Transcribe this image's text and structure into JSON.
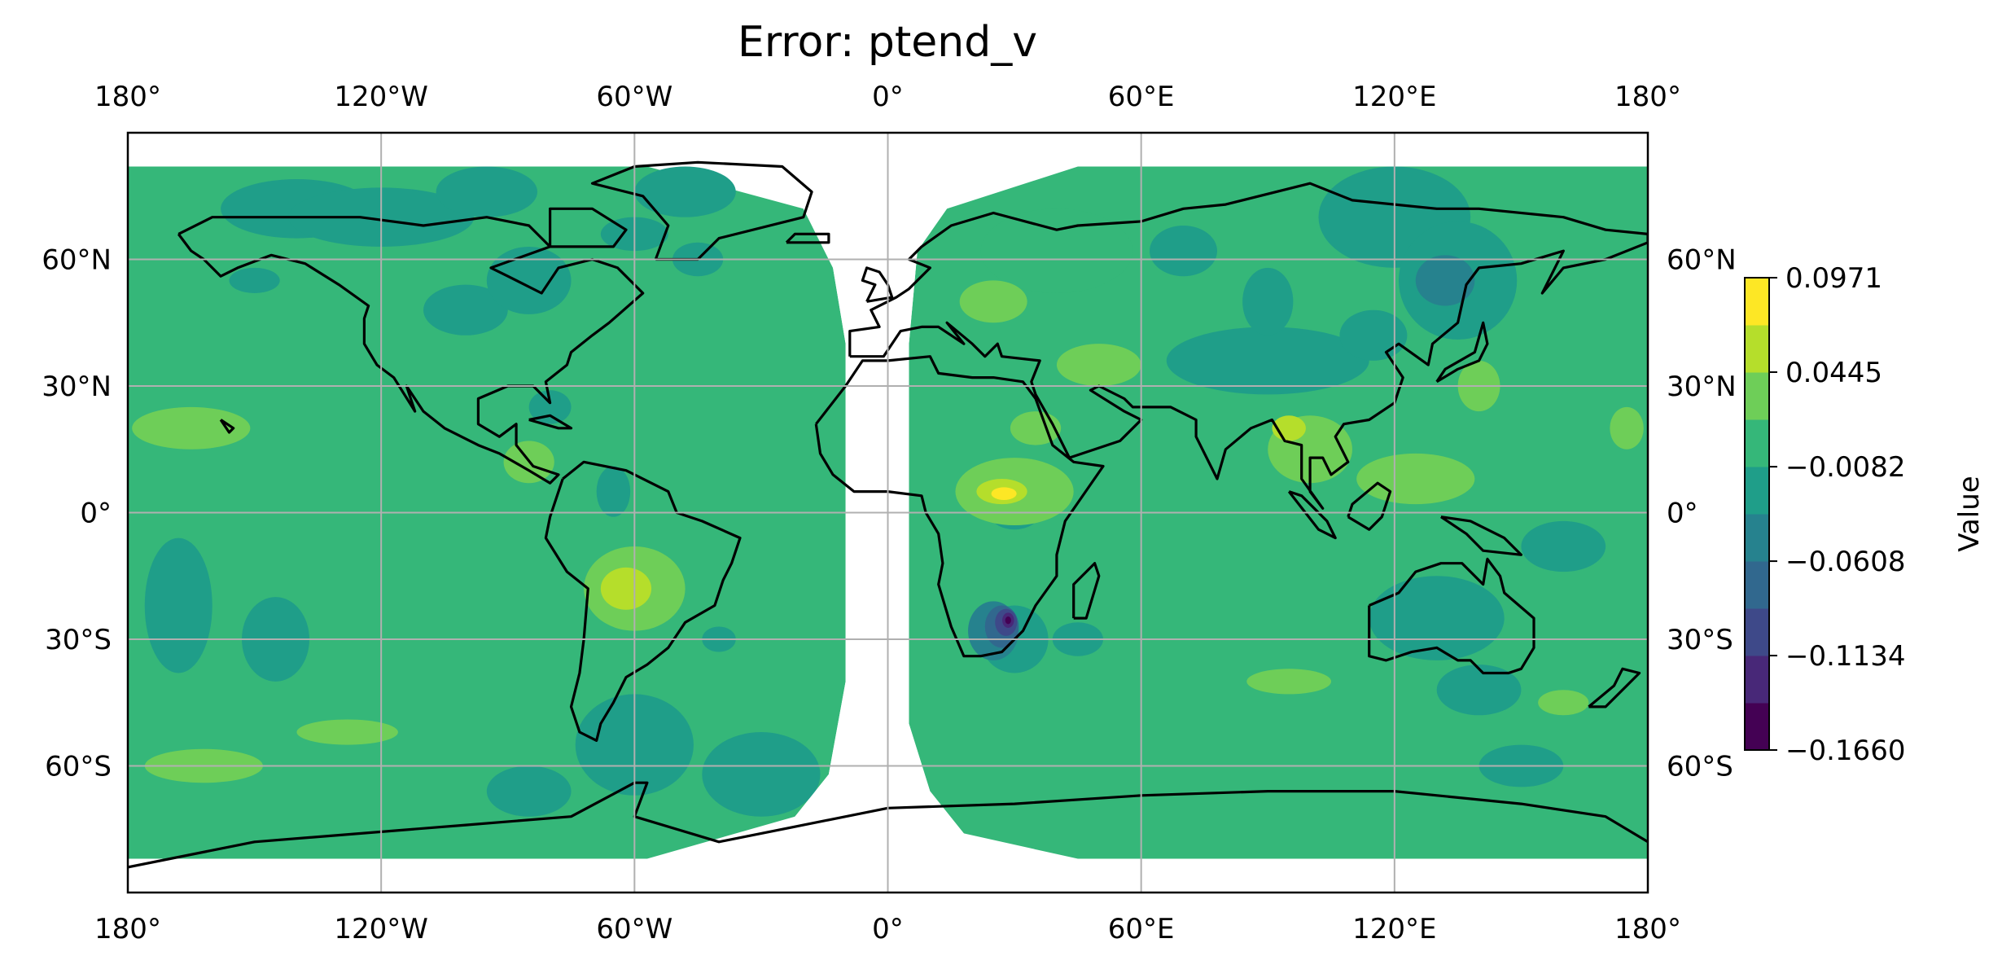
{
  "title": "Error: ptend_v",
  "map": {
    "projection": "plate-carree",
    "extent_lon": [
      -180,
      180
    ],
    "extent_lat": [
      -90,
      90
    ],
    "gridlines": true,
    "coastlines": true,
    "lon_ticks": [
      {
        "value": -180,
        "label": "180°"
      },
      {
        "value": -120,
        "label": "120°W"
      },
      {
        "value": -60,
        "label": "60°W"
      },
      {
        "value": 0,
        "label": "0°"
      },
      {
        "value": 60,
        "label": "60°E"
      },
      {
        "value": 120,
        "label": "120°E"
      },
      {
        "value": 180,
        "label": "180°"
      }
    ],
    "lat_ticks": [
      {
        "value": 60,
        "label": "60°N"
      },
      {
        "value": 30,
        "label": "30°N"
      },
      {
        "value": 0,
        "label": "0°"
      },
      {
        "value": -30,
        "label": "30°S"
      },
      {
        "value": -60,
        "label": "60°S"
      }
    ],
    "data_gap_lon_approx": [
      -10,
      5
    ],
    "field_lat_range_approx": [
      -82,
      82
    ],
    "background_level_color": "#35b779",
    "features": [
      {
        "kind": "min",
        "lon": 28,
        "lat": -26,
        "value": -0.166,
        "desc": "strong negative center over southern Africa"
      },
      {
        "kind": "max",
        "lon": 27,
        "lat": 5,
        "value": 0.0971,
        "desc": "positive center over central Africa"
      },
      {
        "kind": "max",
        "lon": -60,
        "lat": -18,
        "value": 0.07,
        "desc": "positive center over South America"
      },
      {
        "kind": "max",
        "lon": 100,
        "lat": 15,
        "value": 0.07,
        "desc": "positive center over Southeast Asia"
      },
      {
        "kind": "min",
        "lon": 135,
        "lat": 55,
        "value": -0.09,
        "desc": "negative center over northeast Asia"
      }
    ]
  },
  "colorbar": {
    "label": "Value",
    "tick_labels": [
      "0.0971",
      "0.0445",
      "−0.0082",
      "−0.0608",
      "−0.1134",
      "−0.1660"
    ],
    "tick_values": [
      0.0971,
      0.0445,
      -0.0082,
      -0.0608,
      -0.1134,
      -0.166
    ],
    "levels_colors_bottom_to_top": [
      "#440154",
      "#482878",
      "#3e4989",
      "#31688e",
      "#26828e",
      "#1f9e89",
      "#35b779",
      "#6ece58",
      "#b5de2b",
      "#fde725"
    ]
  }
}
